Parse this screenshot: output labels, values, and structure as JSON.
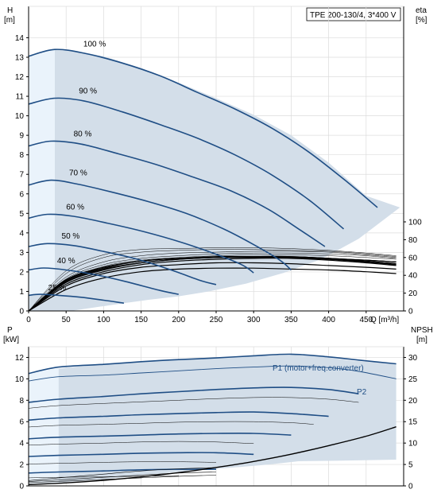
{
  "colors": {
    "band": "#d3dee9",
    "band_light": "#eaf3fb",
    "curve": "#1f4e85",
    "npsh": "#000000",
    "grid": "#dcdcdc",
    "axis": "#000000"
  },
  "chart_data": [
    {
      "type": "line",
      "panel": "QH",
      "title": "TPE 200-130/4, 3*400 V",
      "xlabel": "Q [m³/h]",
      "ylabel_name": "H",
      "ylabel_unit": "[m]",
      "y2label_name": "eta",
      "y2label_unit": "[%]",
      "xlim": [
        0,
        500
      ],
      "ylim": [
        0,
        15
      ],
      "y2lim": [
        0,
        100
      ],
      "x_ticks": [
        0,
        50,
        100,
        150,
        200,
        250,
        300,
        350,
        400,
        450
      ],
      "y_ticks": [
        0,
        1,
        2,
        3,
        4,
        5,
        6,
        7,
        8,
        9,
        10,
        11,
        12,
        13,
        14
      ],
      "y2_ticks": [
        0,
        20,
        40,
        60,
        80,
        100
      ],
      "grid": true,
      "operating_area": [
        [
          0,
          13.05
        ],
        [
          20,
          13.3
        ],
        [
          35,
          13.4
        ],
        [
          60,
          13.35
        ],
        [
          100,
          13.05
        ],
        [
          150,
          12.45
        ],
        [
          200,
          11.7
        ],
        [
          250,
          10.9
        ],
        [
          300,
          10.05
        ],
        [
          350,
          9.0
        ],
        [
          400,
          7.6
        ],
        [
          450,
          5.9
        ],
        [
          495,
          5.3
        ],
        [
          440,
          3.7
        ],
        [
          390,
          2.65
        ],
        [
          340,
          1.95
        ],
        [
          290,
          1.4
        ],
        [
          240,
          1.0
        ],
        [
          200,
          0.75
        ],
        [
          160,
          0.57
        ],
        [
          127,
          0.4
        ],
        [
          60,
          0.02
        ],
        [
          0,
          0.0
        ]
      ],
      "light_area": [
        [
          0,
          13.05
        ],
        [
          35,
          13.4
        ],
        [
          35,
          0.95
        ],
        [
          0,
          0.8
        ]
      ],
      "series": [
        {
          "name": "100 %",
          "x": [
            0,
            35,
            75,
            125,
            175,
            225,
            275,
            325,
            375,
            425,
            465
          ],
          "y": [
            13.05,
            13.4,
            13.2,
            12.7,
            12.05,
            11.2,
            10.35,
            9.35,
            8.1,
            6.6,
            5.3
          ]
        },
        {
          "name": "90 %",
          "x": [
            0,
            35,
            75,
            125,
            175,
            225,
            275,
            325,
            375,
            420
          ],
          "y": [
            10.6,
            10.9,
            10.75,
            10.2,
            9.55,
            8.85,
            8.0,
            6.95,
            5.65,
            4.2
          ]
        },
        {
          "name": "80 %",
          "x": [
            0,
            30,
            70,
            120,
            170,
            220,
            270,
            320,
            360,
            395
          ],
          "y": [
            8.45,
            8.7,
            8.55,
            8.05,
            7.5,
            6.85,
            6.15,
            5.2,
            4.2,
            3.3
          ]
        },
        {
          "name": "70 %",
          "x": [
            0,
            30,
            65,
            110,
            160,
            210,
            260,
            300,
            335,
            350
          ],
          "y": [
            6.45,
            6.7,
            6.5,
            6.1,
            5.6,
            5.0,
            4.2,
            3.4,
            2.6,
            2.1
          ]
        },
        {
          "name": "60 %",
          "x": [
            0,
            25,
            60,
            105,
            155,
            205,
            250,
            285,
            300
          ],
          "y": [
            4.75,
            4.95,
            4.85,
            4.5,
            4.05,
            3.5,
            2.9,
            2.35,
            1.95
          ]
        },
        {
          "name": "50 %",
          "x": [
            0,
            25,
            60,
            100,
            145,
            190,
            230,
            250
          ],
          "y": [
            3.3,
            3.45,
            3.35,
            3.05,
            2.65,
            2.1,
            1.55,
            1.35
          ]
        },
        {
          "name": "40 %",
          "x": [
            0,
            20,
            50,
            90,
            130,
            175,
            200
          ],
          "y": [
            2.1,
            2.2,
            2.1,
            1.85,
            1.5,
            1.05,
            0.85
          ]
        },
        {
          "name": "25 %",
          "x": [
            0,
            15,
            40,
            70,
            100,
            127
          ],
          "y": [
            0.8,
            0.85,
            0.8,
            0.7,
            0.55,
            0.4
          ]
        }
      ],
      "eta_curves": {
        "x": [
          0,
          50,
          100,
          150,
          200,
          250,
          300,
          350,
          400,
          450,
          490
        ],
        "bold": [
          [
            0,
            30,
            44,
            52,
            56,
            58,
            59,
            59,
            57,
            54,
            51
          ],
          [
            0,
            32,
            46,
            54,
            58,
            60,
            60,
            60,
            58,
            55,
            52
          ],
          [
            0,
            34,
            48,
            56,
            59,
            61,
            61,
            60,
            58,
            56,
            53
          ],
          [
            0,
            35,
            49,
            56,
            59,
            60,
            61,
            61,
            59,
            57,
            55
          ],
          [
            0,
            28,
            42,
            49,
            52,
            54,
            54,
            53,
            51,
            49,
            47
          ],
          [
            0,
            24,
            37,
            44,
            47,
            48,
            48,
            47,
            46,
            44,
            42
          ],
          [
            0,
            33,
            47,
            54,
            58,
            60,
            61,
            61,
            59,
            57,
            55
          ]
        ],
        "thin": [
          [
            0,
            45,
            63,
            69,
            70,
            71,
            71,
            70,
            68,
            65,
            62
          ],
          [
            0,
            42,
            60,
            66,
            68,
            69,
            69,
            68,
            67,
            64,
            61
          ],
          [
            0,
            38,
            55,
            62,
            65,
            66,
            67,
            67,
            66,
            63,
            60
          ],
          [
            0,
            36,
            52,
            59,
            62,
            64,
            65,
            65,
            64,
            62,
            59
          ],
          [
            0,
            34,
            50,
            57,
            60,
            62,
            63,
            63,
            62,
            60,
            58
          ]
        ]
      },
      "curve_labels": [
        "100 %",
        "90 %",
        "80 %",
        "70 %",
        "60 %",
        "50 %",
        "40 %",
        "25 %"
      ]
    },
    {
      "type": "line",
      "panel": "P",
      "ylabel_name": "P",
      "ylabel_unit": "[kW]",
      "y2label_name": "NPSH",
      "y2label_unit": "[m]",
      "xlim": [
        0,
        500
      ],
      "ylim": [
        0,
        13
      ],
      "y2lim": [
        0,
        32.5
      ],
      "x_ticks": [
        0,
        50,
        100,
        150,
        200,
        250,
        300,
        350,
        400,
        450
      ],
      "y_ticks": [
        0,
        2,
        4,
        6,
        8,
        10,
        12
      ],
      "y2_ticks": [
        0,
        5,
        10,
        15,
        20,
        25,
        30
      ],
      "grid": true,
      "operating_area": [
        [
          0,
          10.55
        ],
        [
          50,
          11.05
        ],
        [
          100,
          11.35
        ],
        [
          150,
          11.6
        ],
        [
          200,
          11.8
        ],
        [
          250,
          11.95
        ],
        [
          300,
          12.15
        ],
        [
          350,
          12.25
        ],
        [
          400,
          12.0
        ],
        [
          430,
          11.7
        ],
        [
          490,
          11.4
        ],
        [
          490,
          2.45
        ],
        [
          410,
          2.35
        ],
        [
          360,
          2.3
        ],
        [
          320,
          2.0
        ],
        [
          280,
          1.75
        ],
        [
          240,
          1.55
        ],
        [
          200,
          1.3
        ],
        [
          160,
          1.05
        ],
        [
          120,
          0.75
        ],
        [
          80,
          0.5
        ],
        [
          40,
          0.3
        ],
        [
          0,
          0.2
        ]
      ],
      "light_area": [
        [
          0,
          10.55
        ],
        [
          40,
          11.0
        ],
        [
          40,
          0.3
        ],
        [
          0,
          0.2
        ]
      ],
      "series": [
        {
          "name": "P1 (motor+freq.converter)",
          "x": [
            0,
            40,
            100,
            150,
            200,
            250,
            300,
            350,
            400,
            440,
            490
          ],
          "y": [
            10.5,
            11.1,
            11.35,
            11.6,
            11.8,
            11.95,
            12.15,
            12.3,
            12.05,
            11.75,
            11.4
          ]
        },
        {
          "name": "P2",
          "x": [
            0,
            40,
            100,
            150,
            200,
            250,
            300,
            350,
            400,
            440,
            490
          ],
          "y": [
            9.8,
            10.2,
            10.35,
            10.55,
            10.75,
            10.95,
            11.1,
            11.2,
            11.05,
            10.7,
            10.0
          ]
        }
      ],
      "power_levels": [
        {
          "x": [
            0,
            40,
            100,
            150,
            200,
            250,
            300,
            350,
            400,
            440
          ],
          "y": [
            7.8,
            8.1,
            8.35,
            8.6,
            8.8,
            9.0,
            9.15,
            9.2,
            9.0,
            8.6
          ],
          "bold": true
        },
        {
          "x": [
            0,
            40,
            100,
            150,
            200,
            250,
            300,
            350,
            400,
            440
          ],
          "y": [
            7.25,
            7.5,
            7.7,
            7.85,
            8.0,
            8.15,
            8.25,
            8.25,
            8.1,
            7.8
          ],
          "bold": false
        },
        {
          "x": [
            0,
            40,
            100,
            150,
            200,
            250,
            300,
            350,
            400
          ],
          "y": [
            6.15,
            6.35,
            6.5,
            6.65,
            6.75,
            6.85,
            6.9,
            6.75,
            6.5
          ],
          "bold": true
        },
        {
          "x": [
            0,
            40,
            100,
            150,
            200,
            250,
            300,
            350,
            380
          ],
          "y": [
            5.5,
            5.65,
            5.75,
            5.85,
            5.95,
            6.0,
            6.0,
            5.9,
            5.75
          ],
          "bold": false
        },
        {
          "x": [
            0,
            40,
            100,
            150,
            200,
            250,
            300,
            350
          ],
          "y": [
            4.4,
            4.55,
            4.65,
            4.75,
            4.85,
            4.9,
            4.9,
            4.75
          ],
          "bold": true
        },
        {
          "x": [
            0,
            40,
            100,
            150,
            200,
            250,
            300
          ],
          "y": [
            3.8,
            3.9,
            4.0,
            4.1,
            4.15,
            4.1,
            3.95
          ],
          "bold": false
        },
        {
          "x": [
            0,
            40,
            100,
            150,
            200,
            250,
            300
          ],
          "y": [
            2.75,
            2.85,
            2.95,
            3.05,
            3.1,
            3.1,
            2.95
          ],
          "bold": true
        },
        {
          "x": [
            0,
            40,
            100,
            150,
            200,
            250
          ],
          "y": [
            2.05,
            2.1,
            2.2,
            2.25,
            2.25,
            2.2
          ],
          "bold": false
        },
        {
          "x": [
            0,
            40,
            100,
            150,
            200,
            250
          ],
          "y": [
            1.2,
            1.3,
            1.4,
            1.5,
            1.55,
            1.55
          ],
          "bold": true
        },
        {
          "x": [
            0,
            40,
            100,
            150,
            200
          ],
          "y": [
            0.75,
            0.8,
            0.85,
            0.9,
            0.95
          ],
          "bold": false
        }
      ],
      "npsh": {
        "x": [
          0,
          50,
          100,
          150,
          200,
          250,
          300,
          350,
          400,
          450,
          490
        ],
        "y": [
          0.3,
          0.7,
          1.3,
          2.1,
          3.1,
          4.3,
          5.7,
          7.4,
          9.4,
          11.6,
          13.8
        ]
      },
      "p_lines_low": [
        [
          0.5,
          0.8,
          1.1,
          1.4,
          1.6,
          1.7
        ],
        [
          0.4,
          0.6,
          0.8,
          1.0,
          1.2,
          1.3
        ],
        [
          0.3,
          0.45,
          0.6,
          0.75,
          0.9,
          1.0
        ]
      ]
    }
  ]
}
